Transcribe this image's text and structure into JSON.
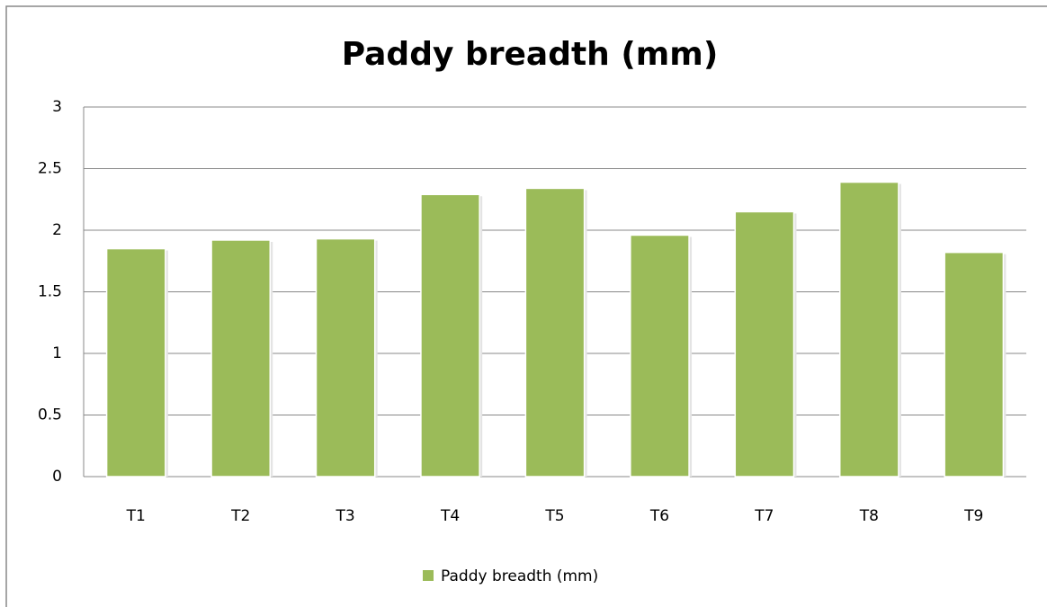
{
  "chart_data": {
    "type": "bar",
    "title": "Paddy breadth (mm)",
    "categories": [
      "T1",
      "T2",
      "T3",
      "T4",
      "T5",
      "T6",
      "T7",
      "T8",
      "T9"
    ],
    "series": [
      {
        "name": "Paddy breadth (mm)",
        "color": "#9bbb59",
        "values": [
          1.85,
          1.92,
          1.93,
          2.29,
          2.34,
          1.96,
          2.15,
          2.39,
          1.82
        ]
      }
    ],
    "ylim": [
      0,
      3
    ],
    "yticks": [
      0,
      0.5,
      1,
      1.5,
      2,
      2.5,
      3
    ],
    "grid": true,
    "legend": "bottom"
  }
}
